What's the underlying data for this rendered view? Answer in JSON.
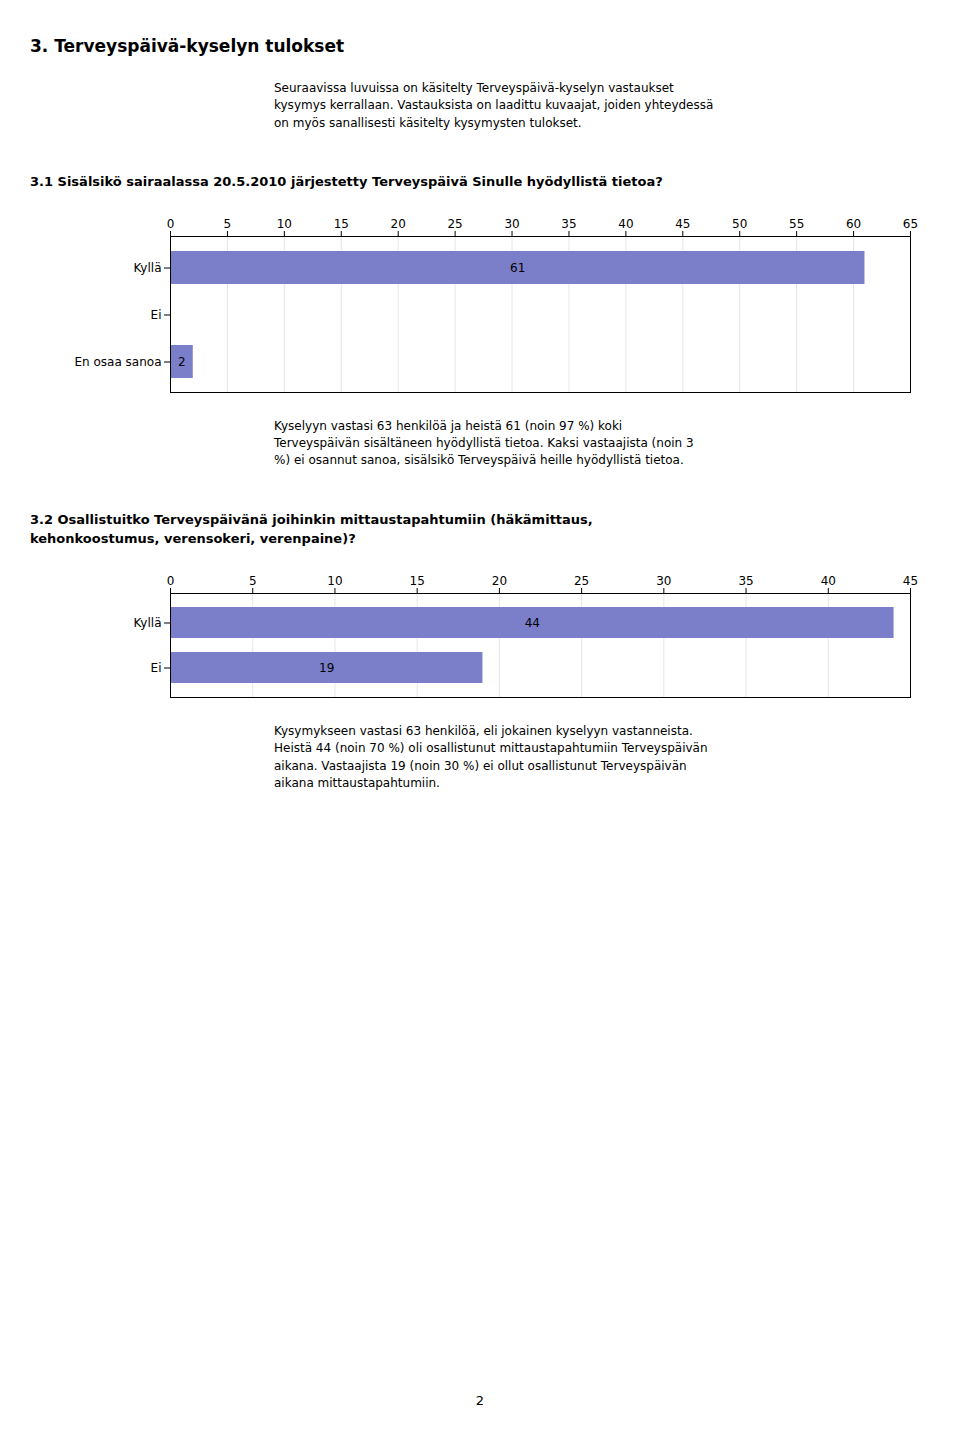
{
  "title": "3. Terveyspäivä-kyselyn tulokset",
  "subtitle": [
    "Seuraavissa luvuissa on käsitelty Terveyspäivä-kyselyn vastaukset",
    "kysymys kerrallaan. Vastauksista on laadittu kuvaajat, joiden yhteydessä",
    "on myös sanallisesti käsitelty kysymysten tulokset."
  ],
  "annotations": [
    "2"
  ],
  "chart_data": [
    {
      "type": "bar",
      "orientation": "horizontal",
      "title": [
        "3.1 Sisälsikö sairaalassa 20.5.2010 järjestetty Terveyspäivä Sinulle hyödyllistä tietoa?"
      ],
      "categories": [
        "Kyllä",
        "Ei",
        "En osaa sanoa"
      ],
      "values": [
        61,
        0,
        2
      ],
      "value_labels": [
        "61",
        null,
        "2"
      ],
      "data_labels": true,
      "color": "#7B7EC8",
      "xlim": [
        0,
        65
      ],
      "xticks": [
        0,
        5,
        10,
        15,
        20,
        25,
        30,
        35,
        40,
        45,
        50,
        55,
        60,
        65
      ],
      "grid": true,
      "annotations": [
        "Kyselyyn vastasi 63 henkilöä ja heistä 61 (noin 97 %) koki",
        "Terveyspäivän sisältäneen hyödyllistä tietoa. Kaksi vastaajista (noin 3",
        "%) ei osannut sanoa, sisälsikö Terveyspäivä heille hyödyllistä tietoa."
      ]
    },
    {
      "type": "bar",
      "orientation": "horizontal",
      "title": [
        "3.2 Osallistuitko Terveyspäivänä joihinkin mittaustapahtumiin (häkämittaus,",
        "kehonkoostumus, verensokeri, verenpaine)?"
      ],
      "categories": [
        "Kyllä",
        "Ei"
      ],
      "values": [
        44,
        19
      ],
      "data_labels": true,
      "color": "#7B7EC8",
      "xlim": [
        0,
        45
      ],
      "xticks": [
        0,
        5,
        10,
        15,
        20,
        25,
        30,
        35,
        40,
        45
      ],
      "grid": true,
      "annotations": [
        "Kysymykseen vastasi 63 henkilöä, eli jokainen kyselyyn vastanneista.",
        "Heistä 44 (noin 70 %) oli osallistunut mittaustapahtumiin Terveyspäivän",
        "aikana. Vastaajista 19 (noin 30 %) ei ollut osallistunut Terveyspäivän",
        "aikana mittaustapahtumiin."
      ]
    }
  ]
}
